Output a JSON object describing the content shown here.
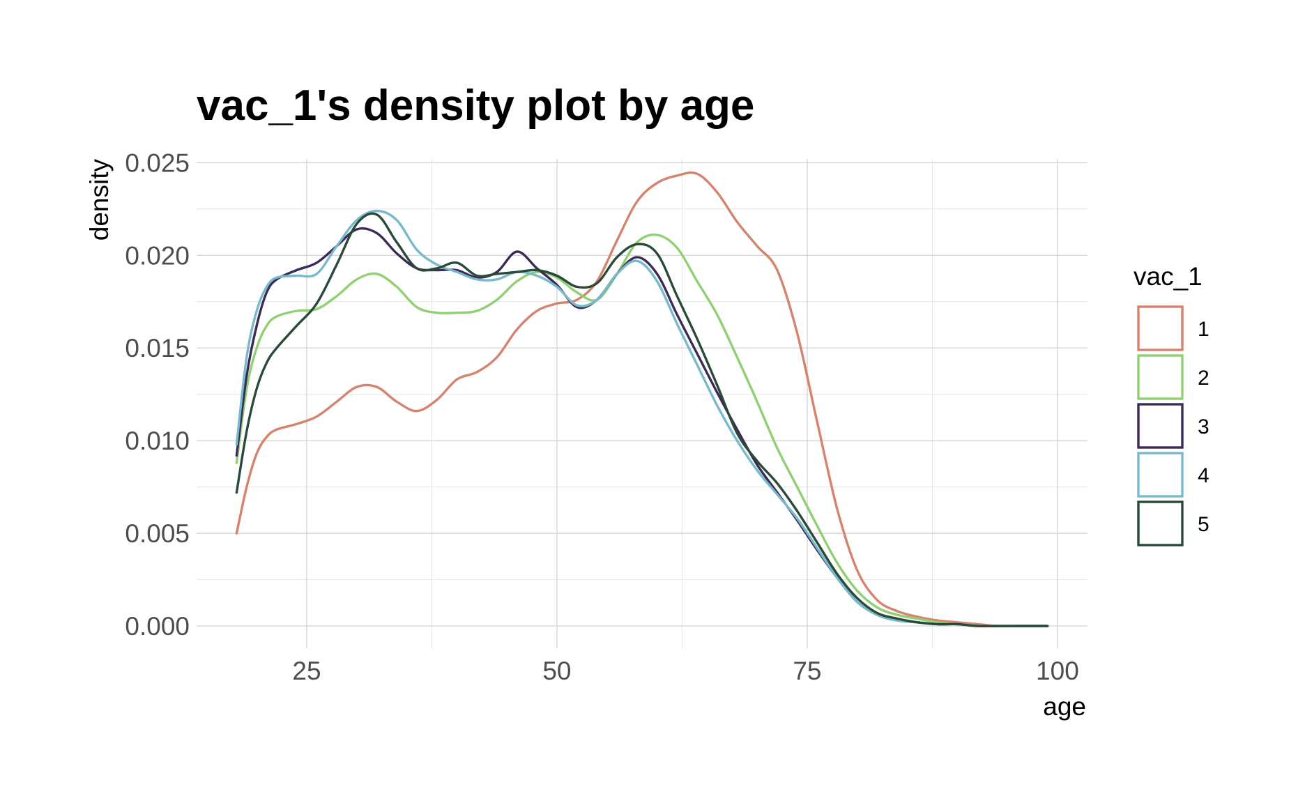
{
  "chart_data": {
    "type": "line",
    "title": "vac_1's density plot by age",
    "xlabel": "age",
    "ylabel": "density",
    "xlim": [
      14,
      103
    ],
    "ylim": [
      -0.0012,
      0.0252
    ],
    "x_ticks": [
      25,
      50,
      75,
      100
    ],
    "x_minor_ticks": [
      37.5,
      62.5,
      87.5
    ],
    "y_ticks": [
      0.0,
      0.005,
      0.01,
      0.015,
      0.02,
      0.025
    ],
    "y_tick_labels": [
      "0.000",
      "0.005",
      "0.010",
      "0.015",
      "0.020",
      "0.025"
    ],
    "y_minor_ticks": [
      0.0025,
      0.0075,
      0.0125,
      0.0175,
      0.0225
    ],
    "grid": true,
    "legend": {
      "title": "vac_1",
      "position": "right"
    },
    "series": [
      {
        "name": "1",
        "color": "#d4836f",
        "x": [
          18,
          19,
          20,
          21,
          22,
          24,
          26,
          28,
          30,
          32,
          34,
          36,
          38,
          40,
          42,
          44,
          46,
          48,
          50,
          52,
          54,
          56,
          58,
          60,
          62,
          64,
          66,
          68,
          70,
          72,
          74,
          76,
          78,
          80,
          82,
          84,
          86,
          88,
          90,
          92,
          94,
          96,
          98,
          99
        ],
        "y": [
          0.005,
          0.0075,
          0.0093,
          0.0102,
          0.0106,
          0.0109,
          0.0113,
          0.0121,
          0.0129,
          0.0129,
          0.0121,
          0.0116,
          0.0122,
          0.0133,
          0.0137,
          0.0145,
          0.016,
          0.017,
          0.0174,
          0.0176,
          0.0186,
          0.0208,
          0.0229,
          0.0239,
          0.0243,
          0.0244,
          0.0234,
          0.0218,
          0.0205,
          0.0192,
          0.0158,
          0.011,
          0.0063,
          0.003,
          0.0014,
          0.0008,
          0.0005,
          0.0003,
          0.0002,
          0.0001,
          0.0,
          0.0,
          0.0,
          0.0
        ]
      },
      {
        "name": "2",
        "color": "#8fd172",
        "x": [
          18,
          19,
          20,
          21,
          22,
          24,
          26,
          28,
          30,
          32,
          34,
          36,
          38,
          40,
          42,
          44,
          46,
          48,
          50,
          52,
          54,
          56,
          58,
          60,
          62,
          64,
          66,
          68,
          70,
          72,
          74,
          76,
          78,
          80,
          82,
          84,
          86,
          88,
          90,
          92,
          94,
          96,
          98,
          99
        ],
        "y": [
          0.0088,
          0.0128,
          0.015,
          0.0162,
          0.0167,
          0.017,
          0.0171,
          0.0178,
          0.0187,
          0.019,
          0.0183,
          0.0172,
          0.0169,
          0.0169,
          0.017,
          0.0176,
          0.0186,
          0.0191,
          0.0188,
          0.018,
          0.0176,
          0.019,
          0.0207,
          0.0211,
          0.0204,
          0.0186,
          0.0168,
          0.0145,
          0.0121,
          0.0096,
          0.0075,
          0.0054,
          0.0034,
          0.0019,
          0.001,
          0.0006,
          0.0004,
          0.0002,
          0.0001,
          0.0,
          0.0,
          0.0,
          0.0,
          0.0
        ]
      },
      {
        "name": "3",
        "color": "#3a2a55",
        "x": [
          18,
          19,
          20,
          21,
          22,
          24,
          26,
          28,
          30,
          32,
          34,
          36,
          38,
          40,
          42,
          44,
          46,
          48,
          50,
          52,
          54,
          56,
          58,
          60,
          62,
          64,
          66,
          68,
          70,
          72,
          74,
          76,
          78,
          80,
          82,
          84,
          86,
          88,
          90,
          92,
          94,
          96,
          98,
          99
        ],
        "y": [
          0.0092,
          0.0135,
          0.0162,
          0.018,
          0.0187,
          0.0192,
          0.0196,
          0.0205,
          0.0214,
          0.0212,
          0.0201,
          0.0193,
          0.0192,
          0.0192,
          0.0188,
          0.0191,
          0.0202,
          0.0193,
          0.0184,
          0.0172,
          0.0176,
          0.019,
          0.0199,
          0.019,
          0.0168,
          0.0147,
          0.0126,
          0.0106,
          0.0087,
          0.0072,
          0.0057,
          0.0041,
          0.0026,
          0.0013,
          0.0006,
          0.0003,
          0.0002,
          0.0001,
          0.0001,
          0.0,
          0.0,
          0.0,
          0.0,
          0.0
        ]
      },
      {
        "name": "4",
        "color": "#78b9cd",
        "x": [
          18,
          19,
          20,
          21,
          22,
          24,
          26,
          28,
          30,
          32,
          34,
          36,
          38,
          40,
          42,
          44,
          46,
          48,
          50,
          52,
          54,
          56,
          58,
          60,
          62,
          64,
          66,
          68,
          70,
          72,
          74,
          76,
          78,
          80,
          82,
          84,
          86,
          88,
          90,
          92,
          94,
          96,
          98,
          99
        ],
        "y": [
          0.0098,
          0.0145,
          0.017,
          0.0183,
          0.0188,
          0.0189,
          0.019,
          0.0205,
          0.0219,
          0.0224,
          0.0219,
          0.0203,
          0.0195,
          0.0191,
          0.0187,
          0.0187,
          0.0191,
          0.0189,
          0.0183,
          0.0173,
          0.0176,
          0.019,
          0.0197,
          0.0186,
          0.0163,
          0.0141,
          0.0119,
          0.01,
          0.0084,
          0.0071,
          0.0058,
          0.0042,
          0.0026,
          0.0013,
          0.0006,
          0.0003,
          0.0002,
          0.0001,
          0.0001,
          0.0,
          0.0,
          0.0,
          0.0,
          0.0
        ]
      },
      {
        "name": "5",
        "color": "#2a4a38",
        "x": [
          18,
          19,
          20,
          21,
          22,
          24,
          26,
          28,
          30,
          32,
          34,
          36,
          38,
          40,
          42,
          44,
          46,
          48,
          50,
          52,
          54,
          56,
          58,
          60,
          62,
          64,
          66,
          68,
          70,
          72,
          74,
          76,
          78,
          80,
          82,
          84,
          86,
          88,
          90,
          92,
          94,
          96,
          98,
          99
        ],
        "y": [
          0.0072,
          0.0105,
          0.0128,
          0.0142,
          0.015,
          0.0162,
          0.0174,
          0.0195,
          0.0217,
          0.0222,
          0.0207,
          0.0193,
          0.0193,
          0.0196,
          0.0189,
          0.019,
          0.0191,
          0.0192,
          0.0189,
          0.0183,
          0.0185,
          0.0199,
          0.0206,
          0.0201,
          0.0178,
          0.0155,
          0.013,
          0.0104,
          0.0089,
          0.0077,
          0.0062,
          0.0045,
          0.0028,
          0.0015,
          0.0007,
          0.0004,
          0.0002,
          0.0001,
          0.0001,
          0.0,
          0.0,
          0.0,
          0.0,
          0.0
        ]
      }
    ]
  }
}
